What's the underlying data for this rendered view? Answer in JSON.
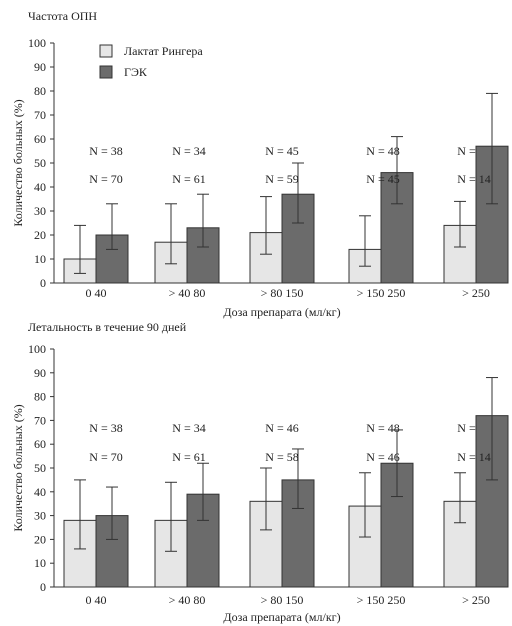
{
  "legend": [
    {
      "label": "Лактат Рингера",
      "color": "#e6e6e6"
    },
    {
      "label": "ГЭК",
      "color": "#6b6b6b"
    }
  ],
  "chart_data": [
    {
      "type": "bar",
      "title": "Частота ОПН",
      "xlabel": "Доза препарата  (мл/кг)",
      "ylabel": "Количество больных (%)",
      "ylim": [
        0,
        100
      ],
      "yticks": [
        0,
        10,
        20,
        30,
        40,
        50,
        60,
        70,
        80,
        90,
        100
      ],
      "categories": [
        "0 40",
        "> 40 80",
        "> 80 150",
        "> 150 250",
        "> 250"
      ],
      "series": [
        {
          "name": "Лактат Рингера",
          "values": [
            10,
            17,
            21,
            14,
            24
          ],
          "err_low": [
            4,
            8,
            12,
            7,
            15
          ],
          "err_high": [
            24,
            33,
            36,
            28,
            34
          ],
          "n_labels": [
            "N = 38",
            "N = 34",
            "N = 45",
            "N = 48",
            "N = 94"
          ]
        },
        {
          "name": "ГЭК",
          "values": [
            20,
            23,
            37,
            46,
            57
          ],
          "err_low": [
            14,
            15,
            25,
            33,
            33
          ],
          "err_high": [
            33,
            37,
            50,
            61,
            79
          ],
          "n_labels": [
            "N = 70",
            "N = 61",
            "N = 59",
            "N = 45",
            "N = 14"
          ]
        }
      ]
    },
    {
      "type": "bar",
      "title": "Летальность в течение 90 дней",
      "xlabel": "Доза препарата  (мл/кг)",
      "ylabel": "Количество больных (%)",
      "ylim": [
        0,
        100
      ],
      "yticks": [
        0,
        10,
        20,
        30,
        40,
        50,
        60,
        70,
        80,
        90,
        100
      ],
      "categories": [
        "0 40",
        "> 40 80",
        "> 80 150",
        "> 150 250",
        "> 250"
      ],
      "series": [
        {
          "name": "Лактат Рингера",
          "values": [
            28,
            28,
            36,
            34,
            36
          ],
          "err_low": [
            16,
            15,
            24,
            21,
            27
          ],
          "err_high": [
            45,
            44,
            50,
            48,
            48
          ],
          "n_labels": [
            "N = 38",
            "N = 34",
            "N = 46",
            "N = 48",
            "N = 94"
          ]
        },
        {
          "name": "ГЭК",
          "values": [
            30,
            39,
            45,
            52,
            72
          ],
          "err_low": [
            20,
            28,
            33,
            38,
            45
          ],
          "err_high": [
            42,
            52,
            58,
            66,
            88
          ],
          "n_labels": [
            "N = 70",
            "N = 61",
            "N = 58",
            "N = 46",
            "N = 14"
          ]
        }
      ]
    }
  ]
}
